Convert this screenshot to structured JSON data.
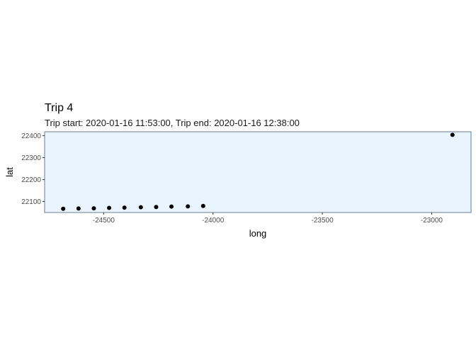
{
  "chart_data": {
    "type": "scatter",
    "title": "Trip 4",
    "subtitle": "Trip start: 2020-01-16 11:53:00, Trip end: 2020-01-16 12:38:00",
    "xlabel": "long",
    "ylabel": "lat",
    "xlim": [
      -24770,
      -22820
    ],
    "ylim": [
      22050,
      22418
    ],
    "x_ticks": [
      -24500,
      -24000,
      -23500,
      -23000
    ],
    "y_ticks": [
      22100,
      22200,
      22300,
      22400
    ],
    "grid": false,
    "panel_fill": "#EAF4FF",
    "panel_border": "#6B7B8C",
    "point_color": "#000000",
    "points": [
      {
        "x": -24685,
        "y": 22067
      },
      {
        "x": -24615,
        "y": 22068
      },
      {
        "x": -24545,
        "y": 22069
      },
      {
        "x": -24475,
        "y": 22071
      },
      {
        "x": -24405,
        "y": 22072
      },
      {
        "x": -24330,
        "y": 22074
      },
      {
        "x": -24260,
        "y": 22075
      },
      {
        "x": -24190,
        "y": 22077
      },
      {
        "x": -24115,
        "y": 22078
      },
      {
        "x": -24045,
        "y": 22080
      },
      {
        "x": -22905,
        "y": 22404
      }
    ]
  }
}
